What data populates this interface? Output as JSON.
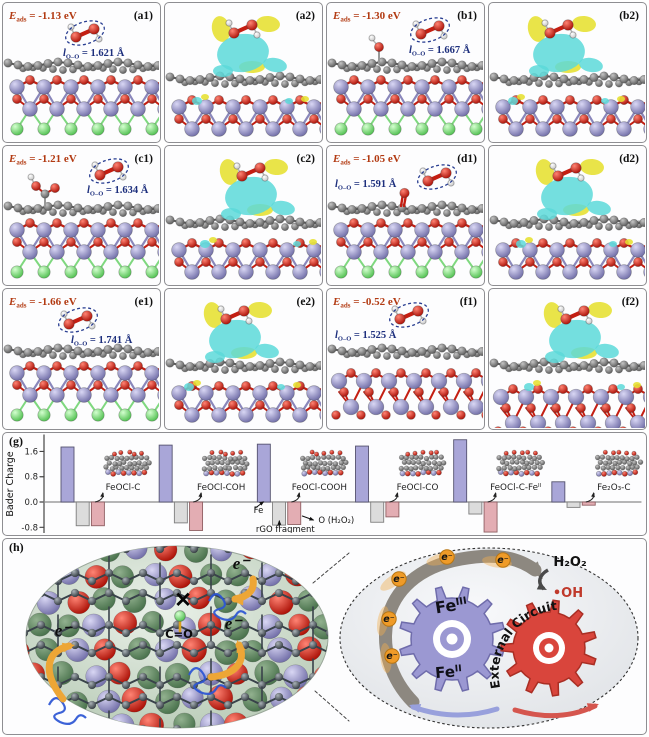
{
  "colors": {
    "eads_text": "#b23a12",
    "loo_text": "#1d2f7d",
    "panel_tag": "#111111",
    "bar_fe": "#a9a6d8",
    "bar_rgo": "#dcdcdc",
    "bar_o": "#e3adb3",
    "isosurface_cyan": "#5cd9d9",
    "isosurface_yellow": "#e6e030",
    "gear_fe": "#9b98d2",
    "gear_external": "#d9453c",
    "electron_orange": "#ef9b28",
    "oh_text": "#c0392b"
  },
  "labels": {
    "eads_base": "E",
    "eads_sub": "ads",
    "equals": " = ",
    "loo_base": "l",
    "loo_sub": "O–O"
  },
  "panels": [
    {
      "tag": "(a1)",
      "kind": "structure",
      "eads": "-1.13 eV",
      "loo": "1.621 Å"
    },
    {
      "tag": "(a2)",
      "kind": "isosurface"
    },
    {
      "tag": "(b1)",
      "kind": "structure",
      "eads": "-1.30 eV",
      "loo": "1.667 Å"
    },
    {
      "tag": "(b2)",
      "kind": "isosurface"
    },
    {
      "tag": "(c1)",
      "kind": "structure",
      "eads": "-1.21 eV",
      "loo": "1.634 Å"
    },
    {
      "tag": "(c2)",
      "kind": "isosurface"
    },
    {
      "tag": "(d1)",
      "kind": "structure",
      "eads": "-1.05 eV",
      "loo": "1.591 Å"
    },
    {
      "tag": "(d2)",
      "kind": "isosurface"
    },
    {
      "tag": "(e1)",
      "kind": "structure",
      "eads": "-1.66 eV",
      "loo": "1.741 Å"
    },
    {
      "tag": "(e2)",
      "kind": "isosurface"
    },
    {
      "tag": "(f1)",
      "kind": "structure",
      "eads": "-0.52 eV",
      "loo": "1.525 Å"
    },
    {
      "tag": "(f2)",
      "kind": "isosurface"
    }
  ],
  "chart_data": {
    "type": "bar",
    "panel_tag": "(g)",
    "ylabel": "Bader Charge",
    "yticks": [
      1.6,
      0.8,
      0.0,
      -0.8
    ],
    "ylim": [
      -0.98,
      2.12
    ],
    "grid": false,
    "legend_position": "inline-annotations",
    "categories": [
      "FeOCl-C",
      "FeOCl-COH",
      "FeOCl-COOH",
      "FeOCl-CO",
      "FeOCl-C-Fe^II",
      "Fe₂O₃-C"
    ],
    "series": [
      {
        "name": "Fe",
        "values": [
          1.74,
          1.8,
          1.83,
          1.77,
          1.97,
          0.64
        ]
      },
      {
        "name": "rGO fragment",
        "values": [
          -0.75,
          -0.66,
          -0.73,
          -0.64,
          -0.38,
          -0.17
        ]
      },
      {
        "name": "O (H₂O₂)",
        "values": [
          -0.75,
          -0.9,
          -0.71,
          -0.47,
          -0.95,
          -0.1
        ]
      }
    ],
    "annotations": {
      "fe": "Fe",
      "rgo": "rGO fragment",
      "o": "O (H₂O₂)"
    }
  },
  "mechanism": {
    "tag": "(h)",
    "electron_label": "e⁻",
    "cross_label": "✕",
    "co_label": "C=O",
    "h2o2_label": "H₂O₂",
    "oh_label": "•OH",
    "gear_fe3": "Fe^III",
    "gear_fe2": "Fe^II",
    "external_circuit": "External Circuit"
  }
}
